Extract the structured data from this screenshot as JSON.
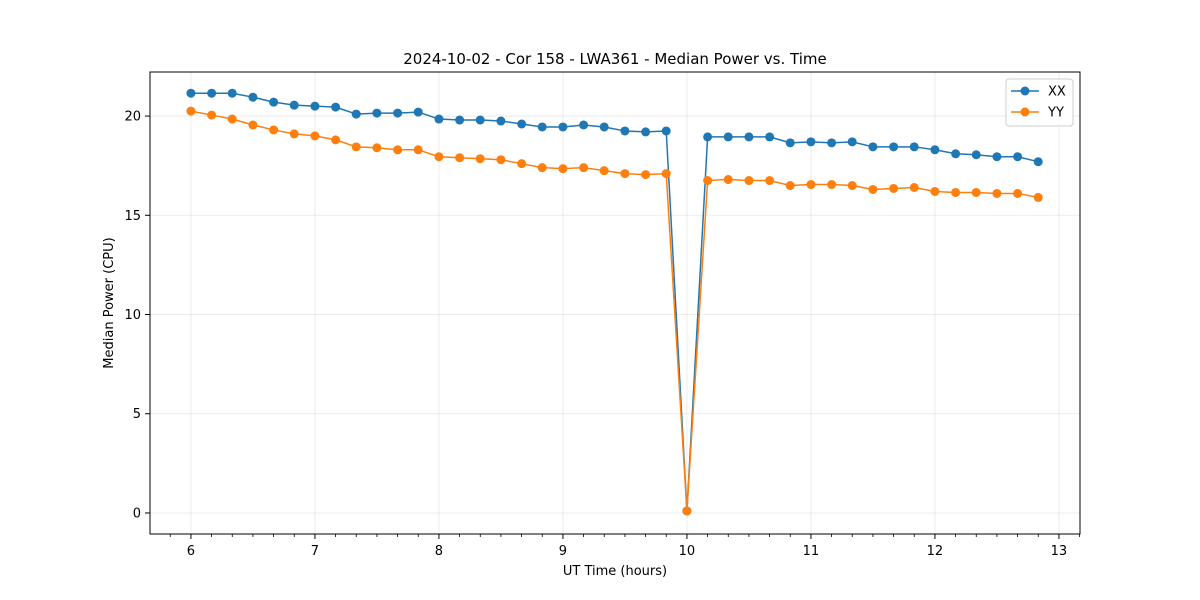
{
  "chart_data": {
    "type": "line",
    "title": "2024-10-02 - Cor 158 - LWA361 - Median Power vs. Time",
    "xlabel": "UT Time (hours)",
    "ylabel": "Median Power (CPU)",
    "xlim": [
      5.67,
      13.17
    ],
    "ylim": [
      -1.06,
      22.22
    ],
    "xticks": [
      6,
      7,
      8,
      9,
      10,
      11,
      12,
      13
    ],
    "yticks": [
      0,
      5,
      10,
      15,
      20
    ],
    "grid": true,
    "legend_position": "top-right",
    "x": [
      6.0,
      6.167,
      6.333,
      6.5,
      6.667,
      6.833,
      7.0,
      7.167,
      7.333,
      7.5,
      7.667,
      7.833,
      8.0,
      8.167,
      8.333,
      8.5,
      8.667,
      8.833,
      9.0,
      9.167,
      9.333,
      9.5,
      9.667,
      9.833,
      10.0,
      10.167,
      10.333,
      10.5,
      10.667,
      10.833,
      11.0,
      11.167,
      11.333,
      11.5,
      11.667,
      11.833,
      12.0,
      12.167,
      12.333,
      12.5,
      12.667,
      12.833
    ],
    "series": [
      {
        "name": "XX",
        "color": "#1f77b4",
        "values": [
          21.15,
          21.15,
          21.15,
          20.95,
          20.7,
          20.55,
          20.5,
          20.45,
          20.1,
          20.15,
          20.15,
          20.2,
          19.85,
          19.8,
          19.8,
          19.75,
          19.6,
          19.45,
          19.45,
          19.55,
          19.45,
          19.25,
          19.2,
          19.25,
          0.1,
          18.95,
          18.95,
          18.95,
          18.95,
          18.65,
          18.7,
          18.65,
          18.7,
          18.45,
          18.45,
          18.45,
          18.3,
          18.1,
          18.05,
          17.95,
          17.95,
          17.7
        ]
      },
      {
        "name": "YY",
        "color": "#ff7f0e",
        "values": [
          20.25,
          20.05,
          19.85,
          19.55,
          19.3,
          19.1,
          19.0,
          18.8,
          18.45,
          18.4,
          18.3,
          18.3,
          17.95,
          17.9,
          17.85,
          17.8,
          17.6,
          17.4,
          17.35,
          17.4,
          17.25,
          17.1,
          17.05,
          17.1,
          0.1,
          16.75,
          16.8,
          16.75,
          16.75,
          16.5,
          16.55,
          16.55,
          16.5,
          16.3,
          16.35,
          16.4,
          16.2,
          16.15,
          16.15,
          16.1,
          16.1,
          15.9
        ]
      }
    ]
  }
}
